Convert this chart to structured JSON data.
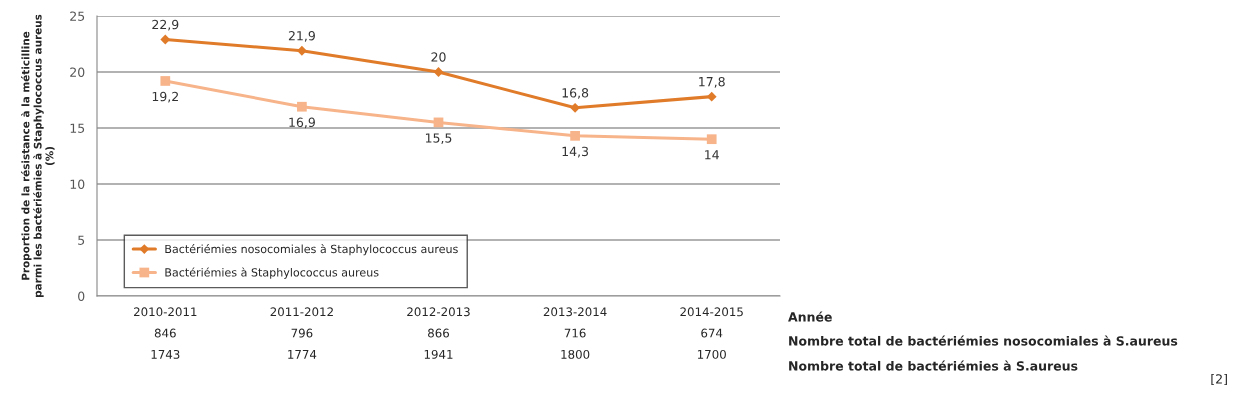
{
  "chart_data": {
    "type": "line",
    "ylabel": "Proportion de la résistance à la méticilline\nparmi les bactériémies à Staphylococcus aureus\n(%)",
    "categories": [
      "2010-2011\n846\n1743",
      "2011-2012\n796\n1774",
      "2012-2013\n866\n1941",
      "2013-2014\n716\n1800",
      "2014-2015\n674\n1700"
    ],
    "series": [
      {
        "name": "Bactériémies nosocomiales à Staphylococcus aureus",
        "color": "#e07b2a",
        "marker": "diamond",
        "values": [
          22.9,
          21.9,
          20,
          16.8,
          17.8
        ],
        "value_labels": [
          "22,9",
          "21,9",
          "20",
          "16,8",
          "17,8"
        ]
      },
      {
        "name": "Bactériémies à Staphylococcus aureus",
        "color": "#f7b48a",
        "marker": "square",
        "values": [
          19.2,
          16.9,
          15.5,
          14.3,
          14
        ],
        "value_labels": [
          "19,2",
          "16,9",
          "15,5",
          "14,3",
          "14"
        ]
      }
    ],
    "ylim": [
      0,
      25
    ],
    "yticks": [
      0,
      5,
      10,
      15,
      20,
      25
    ],
    "grid": "y",
    "legend": "bottom left",
    "annotations": [
      "Année",
      "Nombre total de bactériémies nosocomiales à S.aureus",
      "Nombre total de bactériémies à S.aureus",
      "[2]"
    ]
  }
}
